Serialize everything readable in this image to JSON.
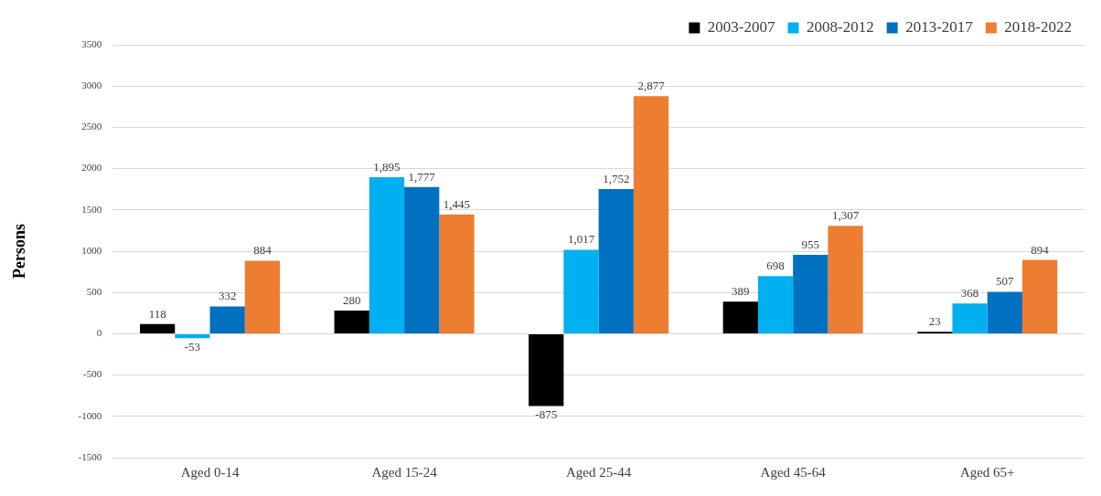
{
  "chart_data": {
    "type": "bar",
    "ylabel": "Persons",
    "categories": [
      "Aged 0-14",
      "Aged 15-24",
      "Aged 25-44",
      "Aged 45-64",
      "Aged 65+"
    ],
    "series": [
      {
        "name": "2003-2007",
        "color": "#000000",
        "values": [
          118,
          280,
          -875,
          389,
          23
        ],
        "value_labels": [
          "118",
          "280",
          "-875",
          "389",
          "23"
        ]
      },
      {
        "name": "2008-2012",
        "color": "#00b0f0",
        "values": [
          -53,
          1895,
          1017,
          698,
          368
        ],
        "value_labels": [
          "-53",
          "1,895",
          "1,017",
          "698",
          "368"
        ]
      },
      {
        "name": "2013-2017",
        "color": "#0070c0",
        "values": [
          332,
          1777,
          1752,
          955,
          507
        ],
        "value_labels": [
          "332",
          "1,777",
          "1,752",
          "955",
          "507"
        ]
      },
      {
        "name": "2018-2022",
        "color": "#ed7d31",
        "values": [
          884,
          1445,
          2877,
          1307,
          894
        ],
        "value_labels": [
          "884",
          "1,445",
          "2,877",
          "1,307",
          "894"
        ]
      }
    ],
    "ylim": [
      -1500,
      3500
    ],
    "yticks": [
      -1500,
      -1000,
      -500,
      0,
      500,
      1000,
      1500,
      2000,
      2500,
      3000,
      3500
    ],
    "grid": "y",
    "legend": "top right"
  }
}
